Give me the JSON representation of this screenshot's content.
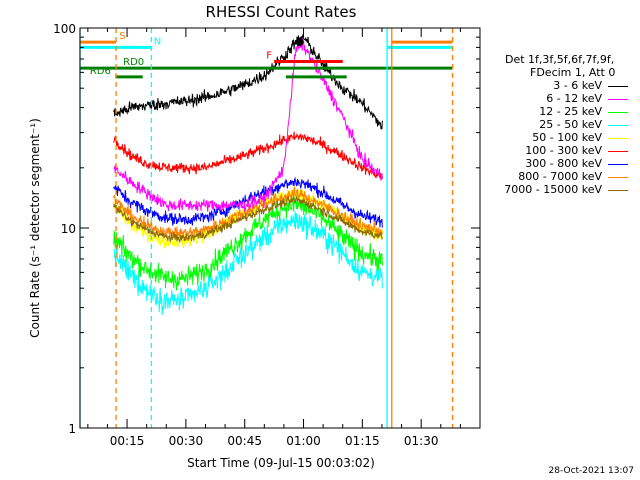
{
  "chart_data": {
    "type": "line",
    "title": "RHESSI Count Rates",
    "xlabel": "Start Time (09-Jul-15 00:03:02)",
    "ylabel": "Count Rate (s⁻¹ detector segment⁻¹)",
    "yscale": "log",
    "ylim": [
      1,
      100
    ],
    "y_ticks": [
      {
        "value": 1,
        "label": "1"
      },
      {
        "value": 10,
        "label": "10"
      },
      {
        "value": 100,
        "label": "100"
      }
    ],
    "xlim_minutes": [
      3.0,
      105.0
    ],
    "x_ticks": [
      {
        "value": 15,
        "label": "00:15"
      },
      {
        "value": 30,
        "label": "00:30"
      },
      {
        "value": 45,
        "label": "00:45"
      },
      {
        "value": 60,
        "label": "01:00"
      },
      {
        "value": 75,
        "label": "01:15"
      },
      {
        "value": 90,
        "label": "01:30"
      }
    ],
    "grid": false,
    "legend_position": "right",
    "legend_title": [
      "Det 1f,3f,5f,6f,7f,9f,",
      "FDecim 1, Att 0"
    ],
    "data_window_minutes": [
      11.6,
      80.1
    ],
    "time_samples_minutes": [
      11.6,
      16,
      20,
      25,
      30,
      35,
      40,
      45,
      50,
      55,
      58,
      60,
      65,
      70,
      75,
      80.1
    ],
    "series": [
      {
        "name": "3 - 6 keV",
        "color": "#000000",
        "noise": 0.07,
        "values": [
          37,
          40,
          41,
          42,
          43,
          45,
          48,
          52,
          58,
          72,
          85,
          90,
          65,
          50,
          42,
          32
        ]
      },
      {
        "name": "6 - 12 keV",
        "color": "#ff00ff",
        "noise": 0.07,
        "values": [
          20,
          17,
          15,
          13,
          13,
          13,
          13,
          13,
          14,
          20,
          78,
          82,
          55,
          36,
          22,
          18
        ]
      },
      {
        "name": "12 - 25 keV",
        "color": "#00ff00",
        "noise": 0.12,
        "values": [
          8.8,
          7.2,
          6.2,
          5.6,
          5.6,
          6.2,
          7.5,
          9.2,
          11.0,
          12.8,
          13.2,
          12.8,
          11.2,
          9.0,
          7.5,
          6.8
        ]
      },
      {
        "name": "25 - 50 keV",
        "color": "#00ffff",
        "noise": 0.13,
        "values": [
          7.5,
          5.8,
          4.9,
          4.3,
          4.4,
          5.0,
          6.0,
          7.5,
          9.0,
          10.5,
          11.0,
          10.6,
          9.2,
          7.5,
          6.0,
          5.6
        ]
      },
      {
        "name": "50 - 100 keV",
        "color": "#ffff00",
        "noise": 0.08,
        "values": [
          13,
          10.5,
          9.3,
          8.6,
          8.6,
          9.2,
          10.5,
          12.0,
          13.5,
          14.5,
          14.8,
          14.5,
          13.0,
          11.5,
          10.0,
          9.3
        ]
      },
      {
        "name": "100 - 300 keV",
        "color": "#ff0000",
        "noise": 0.06,
        "values": [
          28,
          23,
          21,
          20,
          20,
          20,
          21.5,
          23,
          25,
          27.5,
          28.5,
          28.5,
          26,
          23,
          20,
          18
        ]
      },
      {
        "name": "300 - 800 keV",
        "color": "#0000ff",
        "noise": 0.07,
        "values": [
          16,
          13.5,
          12.2,
          11.2,
          11.0,
          11.3,
          12.3,
          13.8,
          15.2,
          16.5,
          17.0,
          16.8,
          15.0,
          13.0,
          11.5,
          10.8
        ]
      },
      {
        "name": "800 - 7000 keV",
        "color": "#ff8000",
        "noise": 0.07,
        "values": [
          14,
          11.5,
          10.3,
          9.5,
          9.4,
          9.8,
          10.8,
          12.0,
          13.2,
          14.3,
          14.8,
          14.5,
          13.0,
          11.5,
          10.2,
          9.6
        ]
      },
      {
        "name": "7000 - 15000 keV",
        "color": "#8b6a00",
        "noise": 0.05,
        "values": [
          12.8,
          10.8,
          9.8,
          9.0,
          8.9,
          9.3,
          10.2,
          11.3,
          12.4,
          13.4,
          13.8,
          13.5,
          12.2,
          10.8,
          9.6,
          9.1
        ]
      }
    ],
    "flag_bars": [
      {
        "label": "S",
        "color": "#ff8000",
        "y_value": 85,
        "segments": [
          [
            3.0,
            12.2
          ],
          [
            82.5,
            98.0
          ]
        ],
        "label_at": 13.0
      },
      {
        "label": "N",
        "color": "#00ffff",
        "y_value": 80,
        "segments": [
          [
            3.0,
            21.2
          ],
          [
            81.3,
            98.0
          ]
        ],
        "label_at": 21.8
      },
      {
        "label": "F",
        "color": "#ff0000",
        "y_value": 68,
        "segments": [
          [
            52.5,
            70.0
          ]
        ],
        "label_at": 50.5
      },
      {
        "label": "RD0",
        "color": "#008000",
        "y_value": 63,
        "segments": [
          [
            3.0,
            98.0
          ]
        ],
        "label_at": 14.0
      },
      {
        "label": "RD6",
        "color": "#008000",
        "y_value": 57,
        "segments": [
          [
            12.0,
            19.0
          ],
          [
            55.5,
            71.0
          ]
        ],
        "label_at": 5.5
      }
    ],
    "vertical_markers": [
      {
        "x": 3.0,
        "color": "#00ffff",
        "style": "solid"
      },
      {
        "x": 12.2,
        "color": "#ff8000",
        "style": "dashed"
      },
      {
        "x": 21.2,
        "color": "#00ffff",
        "style": "dashed"
      },
      {
        "x": 81.3,
        "color": "#00ffff",
        "style": "solid"
      },
      {
        "x": 82.5,
        "color": "#ff8000",
        "style": "solid"
      },
      {
        "x": 98.0,
        "color": "#ff8000",
        "style": "dashed"
      }
    ],
    "marker_point": {
      "x": 59.0,
      "y": 85,
      "color": "#000000"
    }
  },
  "timestamp": "28-Oct-2021 13:07"
}
